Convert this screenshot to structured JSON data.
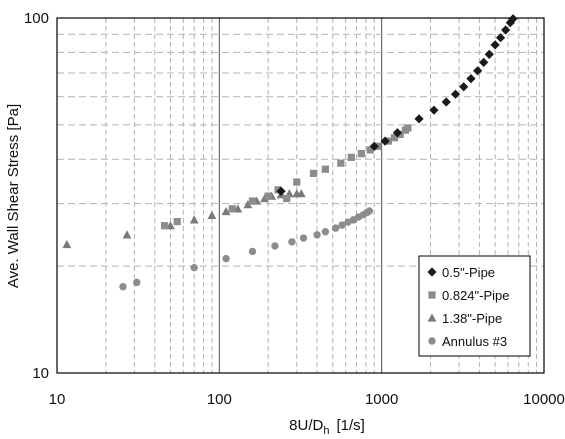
{
  "chart_data": {
    "type": "scatter",
    "x_scale": "log",
    "y_scale": "log",
    "xlim": [
      10,
      10000
    ],
    "ylim": [
      10,
      100
    ],
    "x_ticks": [
      10,
      100,
      1000,
      10000
    ],
    "x_tick_labels": [
      "10",
      "100",
      "1000",
      "10000"
    ],
    "y_ticks": [
      10,
      100
    ],
    "y_tick_labels": [
      "10",
      "100"
    ],
    "xlabel_main": "8U/D",
    "xlabel_sub": "h",
    "xlabel_unit": "[1/s]",
    "ylabel": "Ave. Wall Shear Stress [Pa]",
    "grid": "major solid, minor dashed",
    "legend_position": "bottom-right",
    "series": [
      {
        "name": "0.5\"-Pipe",
        "marker": "diamond",
        "color": "#1a1a1a",
        "points": [
          [
            240,
            32.5
          ],
          [
            900,
            43.5
          ],
          [
            1050,
            45
          ],
          [
            1250,
            47.5
          ],
          [
            1700,
            52
          ],
          [
            2100,
            55
          ],
          [
            2500,
            58
          ],
          [
            2850,
            61
          ],
          [
            3200,
            64
          ],
          [
            3550,
            67.5
          ],
          [
            3900,
            71
          ],
          [
            4250,
            75
          ],
          [
            4600,
            79
          ],
          [
            5000,
            84
          ],
          [
            5400,
            88
          ],
          [
            5800,
            92.5
          ],
          [
            6200,
            97
          ],
          [
            6450,
            99.5
          ]
        ]
      },
      {
        "name": "0.824\"-Pipe",
        "marker": "square",
        "color": "#8c8c8c",
        "points": [
          [
            46,
            26
          ],
          [
            55,
            26.7
          ],
          [
            120,
            29
          ],
          [
            160,
            30.5
          ],
          [
            200,
            31.5
          ],
          [
            230,
            32.8
          ],
          [
            260,
            31
          ],
          [
            300,
            34.5
          ],
          [
            380,
            36.5
          ],
          [
            450,
            37.5
          ],
          [
            560,
            39
          ],
          [
            650,
            40.5
          ],
          [
            750,
            41.5
          ],
          [
            850,
            42.5
          ],
          [
            950,
            43.5
          ],
          [
            1100,
            45
          ],
          [
            1200,
            46
          ],
          [
            1300,
            47
          ],
          [
            1400,
            48.3
          ],
          [
            1450,
            49
          ]
        ]
      },
      {
        "name": "1.38\"-Pipe",
        "marker": "triangle",
        "color": "#7a7a7a",
        "points": [
          [
            11.5,
            23
          ],
          [
            27,
            24.5
          ],
          [
            50,
            26
          ],
          [
            70,
            27
          ],
          [
            90,
            27.8
          ],
          [
            110,
            28.5
          ],
          [
            130,
            29
          ],
          [
            150,
            29.8
          ],
          [
            170,
            30.5
          ],
          [
            190,
            31
          ],
          [
            210,
            31.5
          ],
          [
            240,
            31.8
          ],
          [
            270,
            32
          ],
          [
            300,
            32
          ],
          [
            320,
            32
          ]
        ]
      },
      {
        "name": "Annulus #3",
        "marker": "circle",
        "color": "#8c8c8c",
        "points": [
          [
            25.5,
            17.5
          ],
          [
            31,
            18
          ],
          [
            70,
            19.8
          ],
          [
            110,
            21
          ],
          [
            160,
            22
          ],
          [
            220,
            22.8
          ],
          [
            280,
            23.4
          ],
          [
            330,
            24
          ],
          [
            400,
            24.5
          ],
          [
            450,
            25
          ],
          [
            520,
            25.6
          ],
          [
            570,
            26.1
          ],
          [
            620,
            26.6
          ],
          [
            670,
            27
          ],
          [
            720,
            27.5
          ],
          [
            770,
            27.9
          ],
          [
            810,
            28.3
          ],
          [
            840,
            28.6
          ]
        ]
      }
    ]
  },
  "colors": {
    "major_grid": "#4d4d4d",
    "minor_grid": "#b3b3b3",
    "frame": "#000000"
  }
}
